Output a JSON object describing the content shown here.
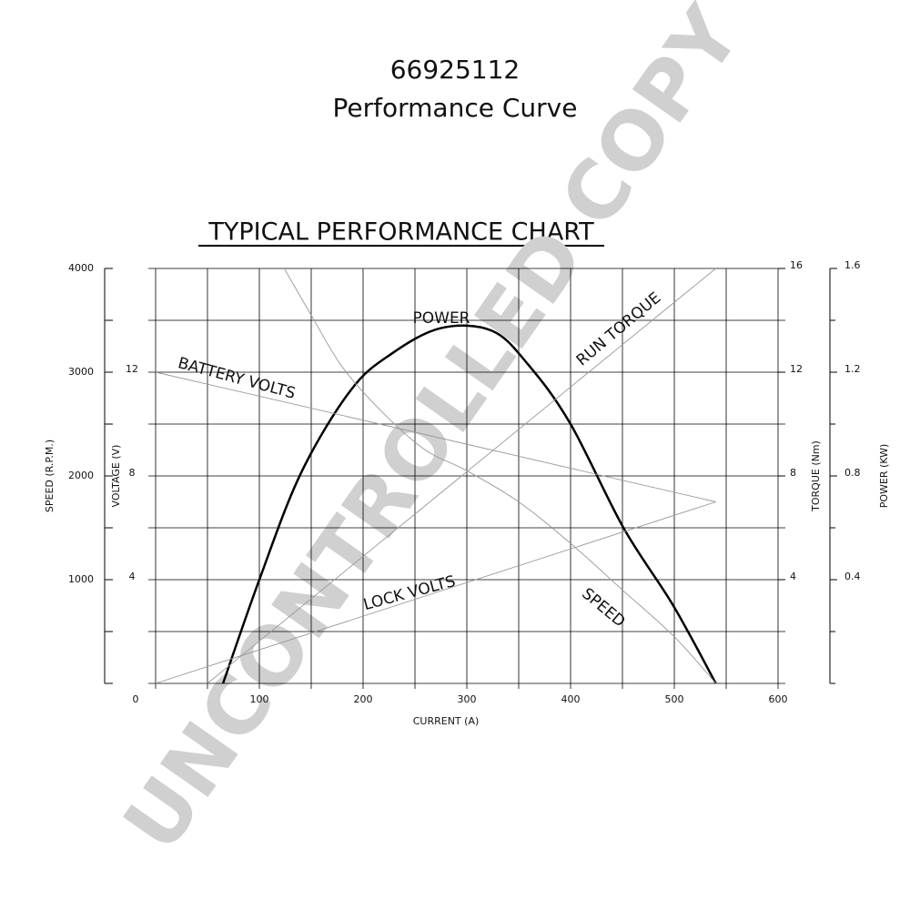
{
  "chart_data": {
    "type": "line",
    "title": "66925112",
    "subtitle": "Performance Curve",
    "heading": "TYPICAL PERFORMANCE CHART",
    "watermark": "UNCONTROLLED COPY",
    "xlabel": "CURRENT (A)",
    "xlim": [
      0,
      600
    ],
    "xticks": [
      0,
      100,
      200,
      300,
      400,
      500,
      600
    ],
    "x_minor_ticks": [
      50,
      150,
      250,
      350,
      450,
      550
    ],
    "grid": true,
    "axes": {
      "speed": {
        "label": "SPEED (R.P.M.)",
        "lim": [
          0,
          4000
        ],
        "ticks": [
          1000,
          2000,
          3000,
          4000
        ],
        "minor_ticks": [
          0,
          500,
          1500,
          2500,
          3500
        ]
      },
      "voltage": {
        "label": "VOLTAGE (V)",
        "lim": [
          0,
          16
        ],
        "ticks": [
          4,
          8,
          12
        ]
      },
      "torque": {
        "label": "TORQUE (Nm)",
        "lim": [
          0,
          16
        ],
        "ticks": [
          4,
          8,
          12,
          16
        ]
      },
      "power": {
        "label": "POWER (KW)",
        "lim": [
          0,
          1.6
        ],
        "ticks": [
          0.4,
          0.8,
          1.2,
          1.6
        ]
      }
    },
    "series": [
      {
        "name": "POWER",
        "axis": "power",
        "color": "#000000",
        "x": [
          65,
          100,
          140,
          188,
          227,
          275,
          324,
          359,
          400,
          451,
          499,
          540
        ],
        "values": [
          0,
          0.4,
          0.81,
          1.13,
          1.27,
          1.37,
          1.36,
          1.23,
          1.0,
          0.6,
          0.3,
          0
        ]
      },
      {
        "name": "BATTERY VOLTS",
        "axis": "voltage",
        "color": "#999999",
        "x": [
          0,
          540
        ],
        "values": [
          12,
          7
        ]
      },
      {
        "name": "RUN TORQUE",
        "axis": "torque",
        "color": "#999999",
        "x": [
          50,
          540
        ],
        "values": [
          0,
          16
        ]
      },
      {
        "name": "LOCK VOLTS",
        "axis": "voltage",
        "color": "#999999",
        "x": [
          0,
          540
        ],
        "values": [
          0,
          7
        ]
      },
      {
        "name": "SPEED",
        "axis": "speed",
        "color": "#999999",
        "x": [
          124,
          150,
          180,
          220,
          260,
          300,
          350,
          400,
          450,
          500,
          540
        ],
        "values": [
          4000,
          3550,
          3050,
          2600,
          2250,
          2050,
          1750,
          1350,
          900,
          450,
          0
        ]
      }
    ]
  }
}
